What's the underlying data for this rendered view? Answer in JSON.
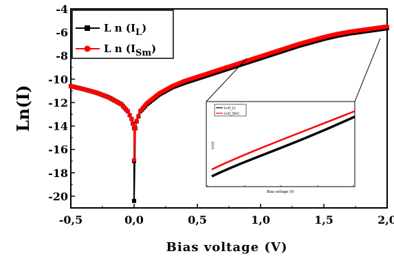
{
  "chart_data": {
    "type": "line",
    "title": "",
    "xlabel": "Bias voltage (V)",
    "ylabel": "Ln(I)",
    "xlim": [
      -0.5,
      2.0
    ],
    "ylim": [
      -21,
      -4
    ],
    "x_ticks": [
      "-0,5",
      "0,0",
      "0,5",
      "1,0",
      "1,5",
      "2,0"
    ],
    "y_ticks": [
      "-4",
      "-6",
      "-8",
      "-10",
      "-12",
      "-14",
      "-16",
      "-18",
      "-20"
    ],
    "legend_position": "top-left",
    "series": [
      {
        "name": "Ln(I_L)",
        "legend_main": "L n (I",
        "legend_sub": "L",
        "legend_close": ")",
        "color": "#000000",
        "marker": "square",
        "x": [
          -0.5,
          -0.4,
          -0.3,
          -0.2,
          -0.1,
          -0.05,
          -0.02,
          -0.01,
          0.0,
          0.0,
          0.0,
          0.01,
          0.02,
          0.05,
          0.1,
          0.2,
          0.3,
          0.4,
          0.5,
          0.6,
          0.7,
          0.8,
          0.9,
          1.0,
          1.1,
          1.2,
          1.3,
          1.4,
          1.5,
          1.6,
          1.7,
          1.8,
          1.9,
          2.0
        ],
        "y": [
          -10.6,
          -10.85,
          -11.15,
          -11.55,
          -12.15,
          -12.75,
          -13.4,
          -13.8,
          -14.2,
          -17.0,
          -20.4,
          -14.2,
          -13.6,
          -12.75,
          -12.15,
          -11.3,
          -10.7,
          -10.3,
          -9.95,
          -9.6,
          -9.25,
          -8.9,
          -8.55,
          -8.2,
          -7.85,
          -7.5,
          -7.15,
          -6.85,
          -6.55,
          -6.3,
          -6.1,
          -5.95,
          -5.8,
          -5.65
        ]
      },
      {
        "name": "Ln(I_Sm)",
        "legend_main": "L n (I",
        "legend_sub": "Sm",
        "legend_close": ")",
        "color": "#ff0000",
        "marker": "circle",
        "x": [
          -0.5,
          -0.4,
          -0.3,
          -0.2,
          -0.1,
          -0.05,
          -0.02,
          -0.01,
          0.0,
          0.0,
          0.01,
          0.02,
          0.05,
          0.1,
          0.2,
          0.3,
          0.4,
          0.5,
          0.6,
          0.7,
          0.8,
          0.9,
          1.0,
          1.1,
          1.2,
          1.3,
          1.4,
          1.5,
          1.6,
          1.7,
          1.8,
          1.9,
          2.0
        ],
        "y": [
          -10.6,
          -10.85,
          -11.15,
          -11.55,
          -12.15,
          -12.75,
          -13.4,
          -13.8,
          -14.2,
          -16.9,
          -14.2,
          -13.55,
          -12.7,
          -12.05,
          -11.2,
          -10.6,
          -10.15,
          -9.8,
          -9.45,
          -9.1,
          -8.75,
          -8.4,
          -8.05,
          -7.7,
          -7.35,
          -7.0,
          -6.7,
          -6.4,
          -6.15,
          -5.95,
          -5.8,
          -5.65,
          -5.5
        ]
      }
    ],
    "inset": {
      "ylabel": "Ln(I)",
      "xlabel": "Bias voltage (V)",
      "legend": [
        "Ln(I_L)",
        "Ln(I_Sm)"
      ]
    }
  }
}
